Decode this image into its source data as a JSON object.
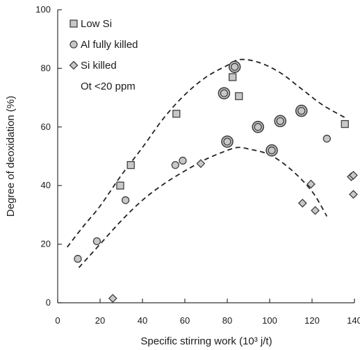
{
  "chart_data": {
    "type": "scatter",
    "title": "",
    "xlabel": "Specific stirring work (10³ j/t)",
    "ylabel": "Degree of deoxidation (%)",
    "xlim": [
      0,
      140
    ],
    "ylim": [
      0,
      100
    ],
    "xticks": [
      0,
      20,
      40,
      60,
      80,
      100,
      120,
      140
    ],
    "yticks": [
      0,
      20,
      40,
      60,
      80,
      100
    ],
    "grid": false,
    "legend_position": "top-left",
    "legend_note": "Ot <20 ppm",
    "series": [
      {
        "name": "Low Si",
        "marker": "square",
        "points": [
          [
            29.5,
            40
          ],
          [
            34.5,
            47
          ],
          [
            56,
            64.5
          ],
          [
            82.5,
            77
          ],
          [
            85.5,
            70.5
          ],
          [
            135.5,
            61
          ]
        ]
      },
      {
        "name": "Al fully killed",
        "marker": "circle",
        "points": [
          [
            9.5,
            15
          ],
          [
            18.5,
            21
          ],
          [
            32,
            35
          ],
          [
            55.5,
            47
          ],
          [
            59,
            48.5
          ],
          [
            78.5,
            71.5
          ],
          [
            80,
            55
          ],
          [
            83.5,
            80.5
          ],
          [
            94.5,
            60
          ],
          [
            101,
            52
          ],
          [
            105,
            62
          ],
          [
            115,
            65.5
          ],
          [
            127,
            56
          ]
        ],
        "ringed_points": [
          [
            78.5,
            71.5
          ],
          [
            80,
            55
          ],
          [
            83.5,
            80.5
          ],
          [
            94.5,
            60
          ],
          [
            101,
            52
          ],
          [
            105,
            62
          ],
          [
            115,
            65.5
          ]
        ]
      },
      {
        "name": "Si killed",
        "marker": "diamond",
        "points": [
          [
            26,
            1.5
          ],
          [
            67.5,
            47.5
          ],
          [
            115.5,
            34
          ],
          [
            119.5,
            40.5
          ],
          [
            121.5,
            31.5
          ],
          [
            138.5,
            43
          ],
          [
            139.5,
            37
          ],
          [
            139.5,
            43.5
          ]
        ]
      }
    ],
    "curves": [
      {
        "style": "dashed",
        "points": [
          [
            4.5,
            19
          ],
          [
            12,
            26
          ],
          [
            20,
            33
          ],
          [
            30,
            43.5
          ],
          [
            40,
            53
          ],
          [
            50,
            63
          ],
          [
            60,
            71
          ],
          [
            70,
            77
          ],
          [
            80,
            81
          ],
          [
            86,
            83
          ],
          [
            95,
            82
          ],
          [
            105,
            78.5
          ],
          [
            115,
            73
          ],
          [
            125,
            67.5
          ],
          [
            136,
            63
          ]
        ]
      },
      {
        "style": "dashed",
        "points": [
          [
            10,
            12
          ],
          [
            20,
            20
          ],
          [
            30,
            28
          ],
          [
            40,
            35
          ],
          [
            50,
            40.5
          ],
          [
            60,
            45
          ],
          [
            70,
            49
          ],
          [
            80,
            52
          ],
          [
            85,
            53
          ],
          [
            90,
            52.5
          ],
          [
            100,
            50.5
          ],
          [
            110,
            45.5
          ],
          [
            120,
            38
          ],
          [
            127,
            29.5
          ]
        ]
      }
    ]
  },
  "colors": {
    "marker_fill": "#c8c8c8",
    "marker_stroke": "#404040",
    "axis": "#333333",
    "text": "#1a1a1a"
  }
}
